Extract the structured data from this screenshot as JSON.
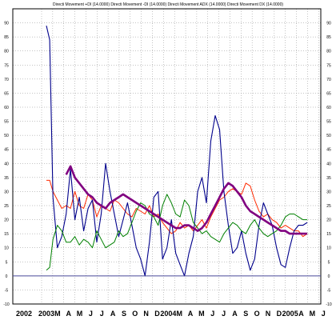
{
  "chart_data": {
    "type": "line",
    "title": "Directi Movement +DI (14.0000) Directi Movement -DI (14.0000) Directi Movement ADX (14.0000) Directi Movement DX (14.0000)",
    "ylim": [
      -10,
      95
    ],
    "y_ticks": [
      -10,
      -5,
      0,
      5,
      10,
      15,
      20,
      25,
      30,
      35,
      40,
      45,
      50,
      55,
      60,
      65,
      70,
      75,
      80,
      85,
      90
    ],
    "x_ticks": [
      "2002",
      "2003",
      "M",
      "A",
      "M",
      "J",
      "J",
      "A",
      "S",
      "O",
      "N",
      "D",
      "2004",
      "M",
      "A",
      "M",
      "J",
      "J",
      "A",
      "S",
      "O",
      "N",
      "D",
      "2005",
      "A",
      "M",
      "J"
    ],
    "zero_line": 0,
    "grid": true,
    "series": [
      {
        "name": "",
        "color": "#ff2a00",
        "x": [
          0,
          0.3,
          0.6,
          1,
          1.4,
          1.8,
          2.2,
          2.6,
          3.0,
          3.4,
          3.8,
          4.2,
          4.6,
          5.0,
          5.4,
          5.8,
          6.2,
          6.6,
          7.0,
          7.4,
          7.8,
          8.2,
          8.6,
          9.0,
          9.4,
          9.8,
          10.2,
          10.6,
          11.0,
          11.4,
          11.8,
          12.2,
          12.6,
          13.0,
          13.4,
          13.8,
          14.2,
          14.6,
          15.0,
          15.4,
          15.8,
          16.2,
          16.6,
          17.0,
          17.4,
          17.8,
          18.2,
          18.6,
          19.0,
          19.4,
          19.8,
          20.2,
          20.6,
          21.0,
          21.4,
          21.8,
          22.2,
          22.6,
          23.0,
          23.4,
          23.8
        ],
        "values": [
          34,
          34,
          30,
          27,
          24,
          25,
          24,
          30,
          25,
          24,
          29,
          27,
          21,
          25,
          24,
          23,
          27,
          26,
          24,
          22,
          21,
          24,
          23,
          22,
          25,
          21,
          22,
          19,
          17,
          15,
          16,
          19,
          17,
          18,
          16,
          18,
          20,
          17,
          21,
          24,
          27,
          28,
          30,
          31,
          30,
          29,
          33,
          32,
          27,
          23,
          21,
          22,
          20,
          19,
          17,
          18,
          17,
          16,
          16,
          14,
          15
        ]
      },
      {
        "name": "",
        "color": "#00008b",
        "x": [
          0,
          0.3,
          0.6,
          1,
          1.4,
          1.8,
          2.2,
          2.6,
          3.0,
          3.4,
          3.8,
          4.2,
          4.6,
          5.0,
          5.4,
          5.8,
          6.2,
          6.6,
          7.0,
          7.4,
          7.8,
          8.2,
          8.6,
          9.0,
          9.4,
          9.8,
          10.2,
          10.6,
          11.0,
          11.4,
          11.8,
          12.2,
          12.6,
          13.0,
          13.4,
          13.8,
          14.2,
          14.6,
          15.0,
          15.4,
          15.8,
          16.2,
          16.6,
          17.0,
          17.4,
          17.8,
          18.2,
          18.6,
          19.0,
          19.4,
          19.8,
          20.2,
          20.6,
          21.0,
          21.4,
          21.8,
          22.2,
          22.6,
          23.0,
          23.4,
          23.8
        ],
        "values": [
          89,
          84,
          28,
          10,
          14,
          22,
          38,
          20,
          28,
          16,
          24,
          27,
          12,
          22,
          40,
          30,
          22,
          14,
          20,
          26,
          18,
          10,
          6,
          0,
          12,
          28,
          30,
          6,
          10,
          20,
          8,
          4,
          0,
          8,
          14,
          30,
          35,
          26,
          48,
          57,
          52,
          30,
          18,
          8,
          10,
          16,
          8,
          2,
          6,
          18,
          26,
          22,
          18,
          10,
          4,
          3,
          10,
          16,
          18,
          18,
          19
        ]
      },
      {
        "name": "",
        "color": "#008000",
        "x": [
          0,
          0.3,
          0.6,
          1,
          1.4,
          1.8,
          2.2,
          2.6,
          3.0,
          3.4,
          3.8,
          4.2,
          4.6,
          5.0,
          5.4,
          5.8,
          6.2,
          6.6,
          7.0,
          7.4,
          7.8,
          8.2,
          8.6,
          9.0,
          9.4,
          9.8,
          10.2,
          10.6,
          11.0,
          11.4,
          11.8,
          12.2,
          12.6,
          13.0,
          13.4,
          13.8,
          14.2,
          14.6,
          15.0,
          15.4,
          15.8,
          16.2,
          16.6,
          17.0,
          17.4,
          17.8,
          18.2,
          18.6,
          19.0,
          19.4,
          19.8,
          20.2,
          20.6,
          21.0,
          21.4,
          21.8,
          22.2,
          22.6,
          23.0,
          23.4,
          23.8
        ],
        "values": [
          2,
          3,
          13,
          18,
          16,
          12,
          12,
          14,
          11,
          13,
          12,
          10,
          16,
          13,
          10,
          11,
          12,
          16,
          14,
          15,
          19,
          23,
          26,
          25,
          22,
          21,
          18,
          25,
          29,
          26,
          22,
          21,
          27,
          25,
          19,
          17,
          15,
          16,
          14,
          13,
          12,
          15,
          17,
          19,
          18,
          16,
          15,
          18,
          20,
          17,
          15,
          14,
          15,
          16,
          18,
          21,
          22,
          22,
          21,
          20,
          20
        ]
      },
      {
        "name": "",
        "color": "#800080",
        "x": [
          1.8,
          2.2,
          2.6,
          3.0,
          3.4,
          3.8,
          4.2,
          4.6,
          5.0,
          5.4,
          5.8,
          6.2,
          6.6,
          7.0,
          7.4,
          7.8,
          8.2,
          8.6,
          9.0,
          9.4,
          9.8,
          10.2,
          10.6,
          11.0,
          11.4,
          11.8,
          12.2,
          12.6,
          13.0,
          13.4,
          13.8,
          14.2,
          14.6,
          15.0,
          15.4,
          15.8,
          16.2,
          16.6,
          17.0,
          17.4,
          17.8,
          18.2,
          18.6,
          19.0,
          19.4,
          19.8,
          20.2,
          20.6,
          21.0,
          21.4,
          21.8,
          22.2,
          22.6,
          23.0,
          23.4,
          23.8
        ],
        "values": [
          36,
          39,
          35,
          33,
          31,
          29,
          28,
          26,
          25,
          24,
          26,
          27,
          28,
          29,
          28,
          27,
          26,
          25,
          24,
          23,
          22,
          21,
          20,
          19,
          18,
          17,
          17,
          18,
          18,
          17,
          16,
          17,
          19,
          22,
          25,
          28,
          31,
          33,
          32,
          30,
          28,
          25,
          23,
          22,
          21,
          20,
          19,
          18,
          17,
          16,
          16,
          15,
          15,
          15,
          15,
          15
        ]
      }
    ]
  }
}
